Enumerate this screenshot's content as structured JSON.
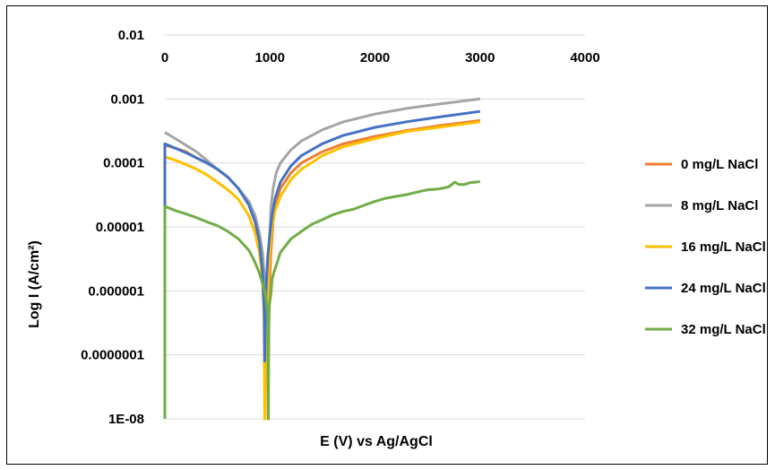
{
  "chart_data": {
    "type": "line",
    "title": "",
    "xlabel": "E (V) vs Ag/AgCl",
    "ylabel": "Log I (A/cm²)",
    "xlim": [
      0,
      4000
    ],
    "ylim": [
      1e-08,
      0.01
    ],
    "y_scale": "log",
    "x_ticks": [
      "0",
      "1000",
      "2000",
      "3000",
      "4000"
    ],
    "y_ticks": [
      "0.01",
      "0.001",
      "0.0001",
      "0.00001",
      "0.000001",
      "0.0000001",
      "1E-08"
    ],
    "x_axis_position": "top",
    "grid": "horizontal",
    "legend_position": "right",
    "series": [
      {
        "name": "0 mg/L NaCl",
        "color": "#ED7D31",
        "x": [
          0,
          100,
          200,
          300,
          400,
          500,
          600,
          700,
          800,
          860,
          900,
          930,
          950,
          960,
          970,
          975,
          980,
          985,
          995,
          1010,
          1030,
          1060,
          1100,
          1200,
          1300,
          1500,
          1700,
          2000,
          2300,
          2600,
          3000
        ],
        "y": [
          0.00019,
          0.00017,
          0.00015,
          0.00012,
          0.0001,
          8e-05,
          6e-05,
          4e-05,
          2.2e-05,
          1.2e-05,
          6e-06,
          3e-06,
          1.2e-06,
          4e-07,
          1.5e-07,
          3e-08,
          3e-08,
          3e-07,
          1.2e-06,
          4e-06,
          1.2e-05,
          2.5e-05,
          4e-05,
          7e-05,
          0.0001,
          0.00015,
          0.0002,
          0.00026,
          0.00032,
          0.00038,
          0.00046
        ]
      },
      {
        "name": "8 mg/L NaCl",
        "color": "#A5A5A5",
        "x": [
          0,
          100,
          200,
          300,
          400,
          500,
          600,
          700,
          800,
          860,
          900,
          930,
          950,
          960,
          970,
          975,
          985,
          995,
          1010,
          1030,
          1060,
          1100,
          1200,
          1300,
          1500,
          1700,
          2000,
          2300,
          2600,
          3000
        ],
        "y": [
          0.0003,
          0.00024,
          0.00019,
          0.00015,
          0.00011,
          8e-05,
          6e-05,
          4e-05,
          2.5e-05,
          1.5e-05,
          8e-06,
          4e-06,
          1.5e-06,
          5e-07,
          2e-07,
          1e-07,
          1e-06,
          6e-06,
          2e-05,
          4e-05,
          7e-05,
          0.0001,
          0.00016,
          0.00022,
          0.00033,
          0.00044,
          0.00058,
          0.00071,
          0.00083,
          0.001
        ]
      },
      {
        "name": "16 mg/L NaCl",
        "color": "#FFC000",
        "x": [
          0,
          100,
          200,
          300,
          400,
          500,
          600,
          700,
          800,
          860,
          900,
          930,
          945,
          950,
          955,
          960,
          970,
          985,
          1000,
          1020,
          1050,
          1100,
          1200,
          1300,
          1500,
          1700,
          2000,
          2300,
          2600,
          3000
        ],
        "y": [
          0.000125,
          0.00011,
          9.5e-05,
          8e-05,
          6.5e-05,
          5e-05,
          3.8e-05,
          2.7e-05,
          1.5e-05,
          8e-06,
          4e-06,
          1.5e-06,
          4e-07,
          1e-08,
          1e-08,
          1e-07,
          5e-07,
          1.5e-06,
          4e-06,
          1e-05,
          1.8e-05,
          3e-05,
          5.5e-05,
          8e-05,
          0.00013,
          0.00018,
          0.00024,
          0.00031,
          0.00036,
          0.00044
        ]
      },
      {
        "name": "24 mg/L NaCl",
        "color": "#4472C4",
        "x": [
          0,
          0,
          100,
          200,
          300,
          400,
          500,
          600,
          700,
          800,
          860,
          900,
          930,
          945,
          950,
          955,
          965,
          980,
          1000,
          1020,
          1050,
          1100,
          1200,
          1300,
          1500,
          1700,
          2000,
          2300,
          2600,
          3000
        ],
        "y": [
          2e-06,
          0.0002,
          0.00017,
          0.000145,
          0.00012,
          0.0001,
          8e-05,
          6e-05,
          4e-05,
          2.2e-05,
          1.2e-05,
          6e-06,
          2e-06,
          5e-07,
          8e-08,
          5e-07,
          1.2e-06,
          3.5e-06,
          8e-06,
          1.5e-05,
          2.8e-05,
          5e-05,
          9e-05,
          0.00013,
          0.0002,
          0.00027,
          0.00036,
          0.00044,
          0.00052,
          0.00064
        ]
      },
      {
        "name": "32 mg/L NaCl",
        "color": "#70AD47",
        "x": [
          0,
          0,
          100,
          200,
          300,
          400,
          500,
          600,
          700,
          800,
          850,
          900,
          930,
          950,
          960,
          970,
          980,
          985,
          990,
          995,
          1000,
          1010,
          1020,
          1040,
          1070,
          1100,
          1200,
          1300,
          1400,
          1500,
          1600,
          1700,
          1800,
          1900,
          2000,
          2100,
          2200,
          2300,
          2400,
          2500,
          2600,
          2700,
          2760,
          2800,
          2850,
          2900,
          3000
        ],
        "y": [
          1e-08,
          2.1e-05,
          1.8e-05,
          1.6e-05,
          1.4e-05,
          1.2e-05,
          1.05e-05,
          8.5e-06,
          6.5e-06,
          4.3e-06,
          3e-06,
          1.9e-06,
          1.3e-06,
          1e-06,
          8e-07,
          6e-07,
          4e-07,
          1e-08,
          3e-07,
          6e-07,
          7e-07,
          9e-07,
          1.5e-06,
          2e-06,
          2.8e-06,
          4e-06,
          6.5e-06,
          8.5e-06,
          1.1e-05,
          1.3e-05,
          1.55e-05,
          1.75e-05,
          1.9e-05,
          2.2e-05,
          2.5e-05,
          2.8e-05,
          3e-05,
          3.2e-05,
          3.5e-05,
          3.8e-05,
          3.9e-05,
          4.2e-05,
          5e-05,
          4.6e-05,
          4.6e-05,
          4.9e-05,
          5.1e-05
        ]
      }
    ]
  }
}
